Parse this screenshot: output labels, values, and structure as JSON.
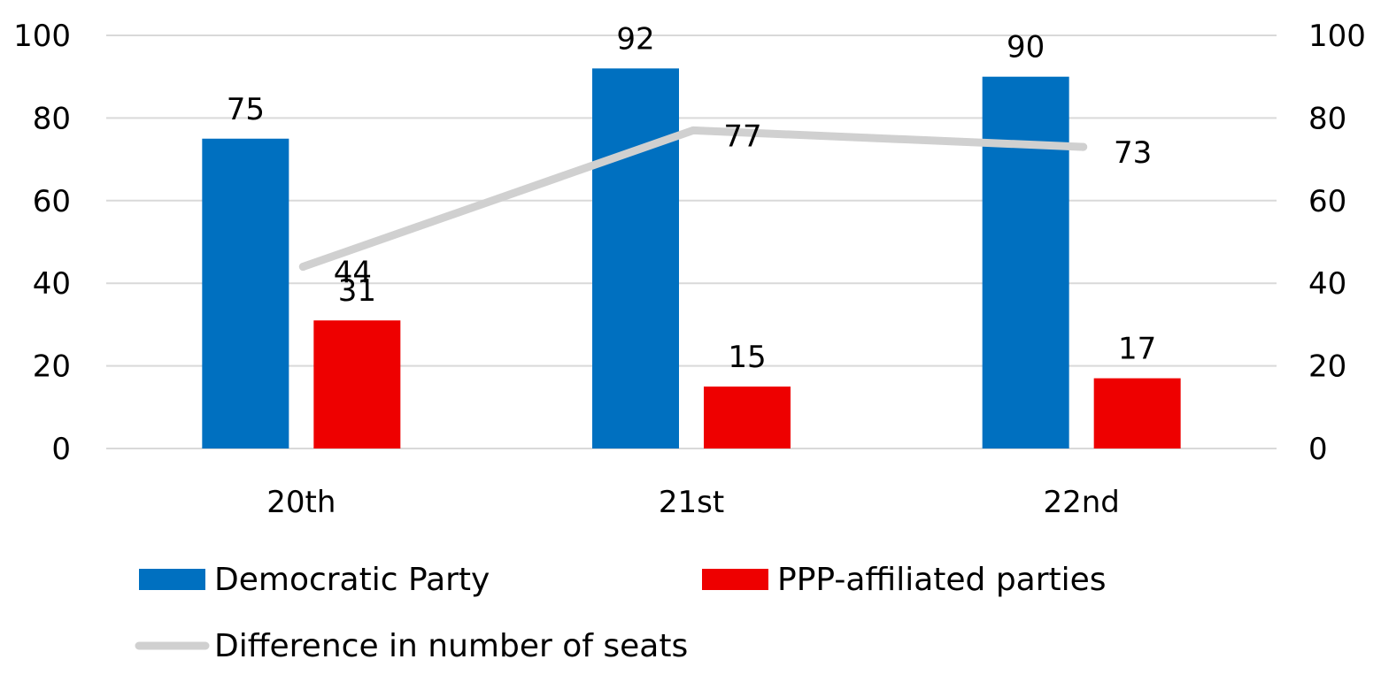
{
  "chart_data": {
    "type": "bar",
    "categories": [
      "20th",
      "21st",
      "22nd"
    ],
    "series": [
      {
        "name": "Democratic Party",
        "type": "bar",
        "axis": "left",
        "color": "#0070C0",
        "values": [
          75,
          92,
          90
        ]
      },
      {
        "name": "PPP-affiliated parties",
        "type": "bar",
        "axis": "left",
        "color": "#EE0000",
        "values": [
          31,
          15,
          17
        ]
      },
      {
        "name": "Difference in number of seats",
        "type": "line",
        "axis": "right",
        "color": "#D0D0D0",
        "values": [
          44,
          77,
          73
        ]
      }
    ],
    "ylim": [
      0,
      100
    ],
    "y2lim": [
      0,
      100
    ],
    "yticks": [
      0,
      20,
      40,
      60,
      80,
      100
    ],
    "title": "",
    "xlabel": "",
    "ylabel": "",
    "grid": true,
    "legend": "bottom"
  }
}
